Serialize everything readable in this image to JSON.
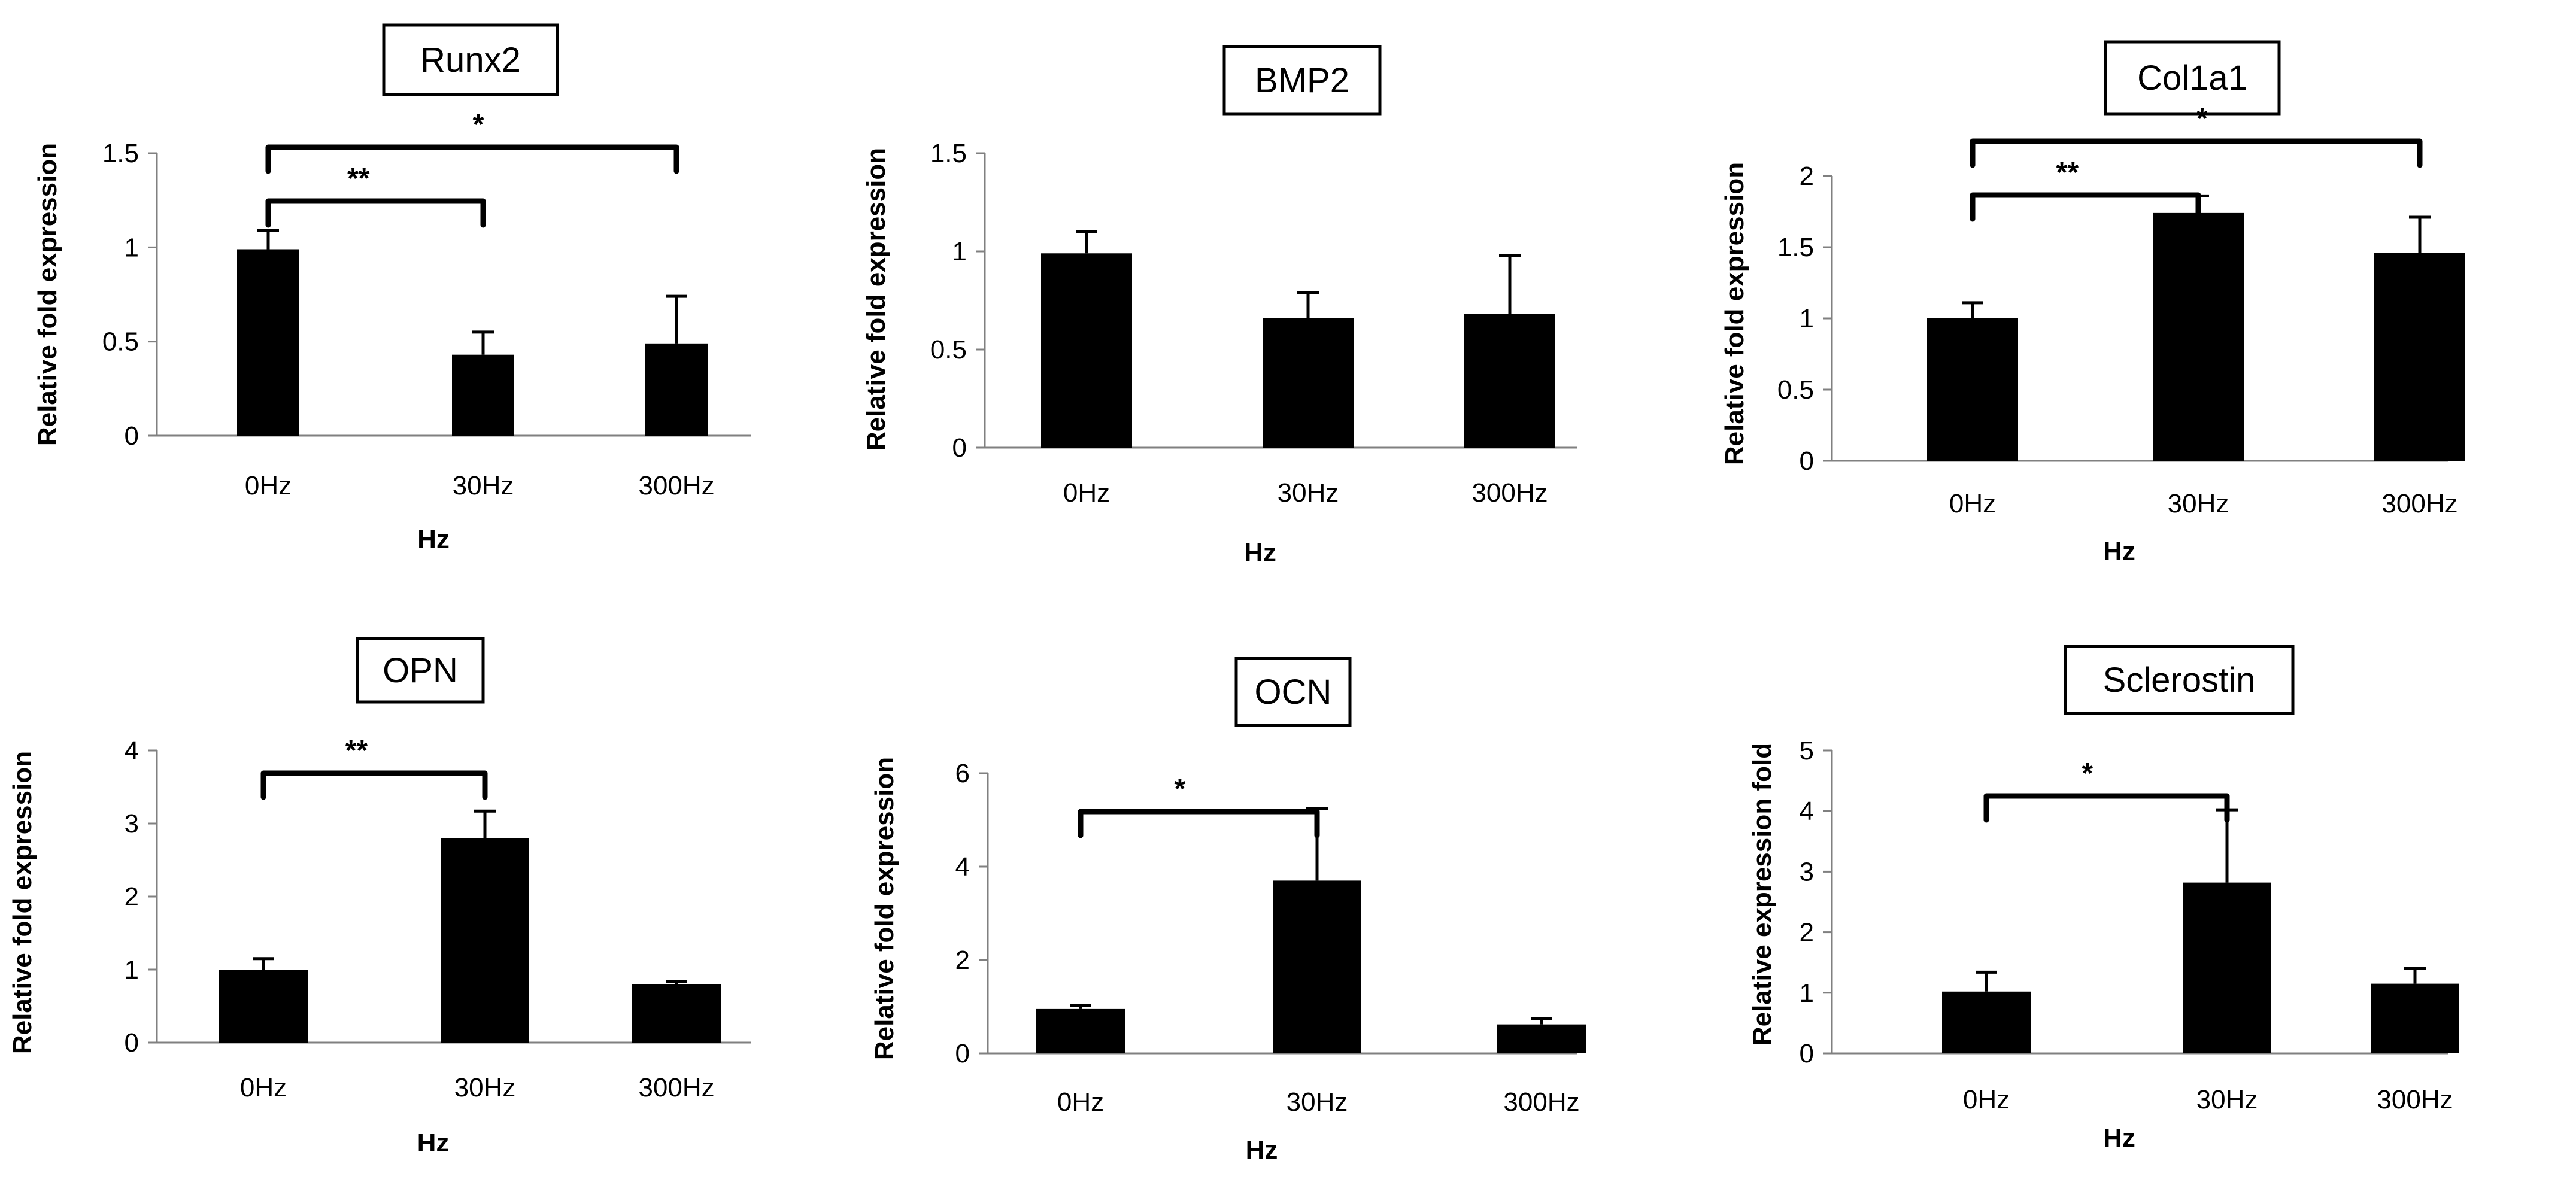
{
  "figure": {
    "accent_color": "#000000"
  },
  "chart_data": [
    {
      "id": "runx2",
      "type": "bar",
      "title": "Runx2",
      "xlabel": "Hz",
      "ylabel": "Relative fold expression",
      "categories": [
        "0Hz",
        "30Hz",
        "300Hz"
      ],
      "values": [
        0.99,
        0.43,
        0.49
      ],
      "errors": [
        0.1,
        0.12,
        0.25
      ],
      "ylim": [
        0,
        1.5
      ],
      "yticks": [
        0,
        0.5,
        1,
        1.5
      ],
      "ytick_labels": [
        "0",
        "0.5",
        "1",
        "1.5"
      ],
      "significance": [
        {
          "from": 0,
          "to": 2,
          "label": "*",
          "level": 2
        },
        {
          "from": 0,
          "to": 1,
          "label": "**",
          "level": 1
        }
      ]
    },
    {
      "id": "bmp2",
      "type": "bar",
      "title": "BMP2",
      "xlabel": "Hz",
      "ylabel": "Relative fold expression",
      "categories": [
        "0Hz",
        "30Hz",
        "300Hz"
      ],
      "values": [
        0.99,
        0.66,
        0.68
      ],
      "errors": [
        0.11,
        0.13,
        0.3
      ],
      "ylim": [
        0,
        1.5
      ],
      "yticks": [
        0,
        0.5,
        1,
        1.5
      ],
      "ytick_labels": [
        "0",
        "0.5",
        "1",
        "1.5"
      ],
      "significance": []
    },
    {
      "id": "col1a1",
      "type": "bar",
      "title": "Col1a1",
      "xlabel": "Hz",
      "ylabel": "Relative fold expression",
      "categories": [
        "0Hz",
        "30Hz",
        "300Hz"
      ],
      "values": [
        1.0,
        1.74,
        1.46
      ],
      "errors": [
        0.11,
        0.12,
        0.25
      ],
      "ylim": [
        0,
        2
      ],
      "yticks": [
        0,
        0.5,
        1,
        1.5,
        2
      ],
      "ytick_labels": [
        "0",
        "0.5",
        "1",
        "1.5",
        "2"
      ],
      "significance": [
        {
          "from": 0,
          "to": 2,
          "label": "*",
          "level": 2
        },
        {
          "from": 0,
          "to": 1,
          "label": "**",
          "level": 1
        }
      ]
    },
    {
      "id": "opn",
      "type": "bar",
      "title": "OPN",
      "xlabel": "Hz",
      "ylabel": "Relative fold expression",
      "categories": [
        "0Hz",
        "30Hz",
        "300Hz"
      ],
      "values": [
        1.0,
        2.8,
        0.8
      ],
      "errors": [
        0.15,
        0.37,
        0.04
      ],
      "ylim": [
        0,
        4
      ],
      "yticks": [
        0,
        1,
        2,
        3,
        4
      ],
      "ytick_labels": [
        "0",
        "1",
        "2",
        "3",
        "4"
      ],
      "significance": [
        {
          "from": 0,
          "to": 1,
          "label": "**",
          "level": 1
        }
      ]
    },
    {
      "id": "ocn",
      "type": "bar",
      "title": "OCN",
      "xlabel": "Hz",
      "ylabel": "Relative fold expression",
      "categories": [
        "0Hz",
        "30Hz",
        "300Hz"
      ],
      "values": [
        0.95,
        3.7,
        0.62
      ],
      "errors": [
        0.07,
        1.55,
        0.13
      ],
      "ylim": [
        0,
        6
      ],
      "yticks": [
        0,
        2,
        4,
        6
      ],
      "ytick_labels": [
        "0",
        "2",
        "4",
        "6"
      ],
      "significance": [
        {
          "from": 0,
          "to": 1,
          "label": "*",
          "level": 1
        }
      ]
    },
    {
      "id": "sclerostin",
      "type": "bar",
      "title": "Sclerostin",
      "xlabel": "Hz",
      "ylabel": "Relative expression fold",
      "categories": [
        "0Hz",
        "30Hz",
        "300Hz"
      ],
      "values": [
        1.02,
        2.82,
        1.15
      ],
      "errors": [
        0.32,
        1.2,
        0.25
      ],
      "ylim": [
        0,
        5
      ],
      "yticks": [
        0,
        1,
        2,
        3,
        4,
        5
      ],
      "ytick_labels": [
        "0",
        "1",
        "2",
        "3",
        "4",
        "5"
      ],
      "significance": [
        {
          "from": 0,
          "to": 1,
          "label": "*",
          "level": 1
        }
      ]
    }
  ]
}
